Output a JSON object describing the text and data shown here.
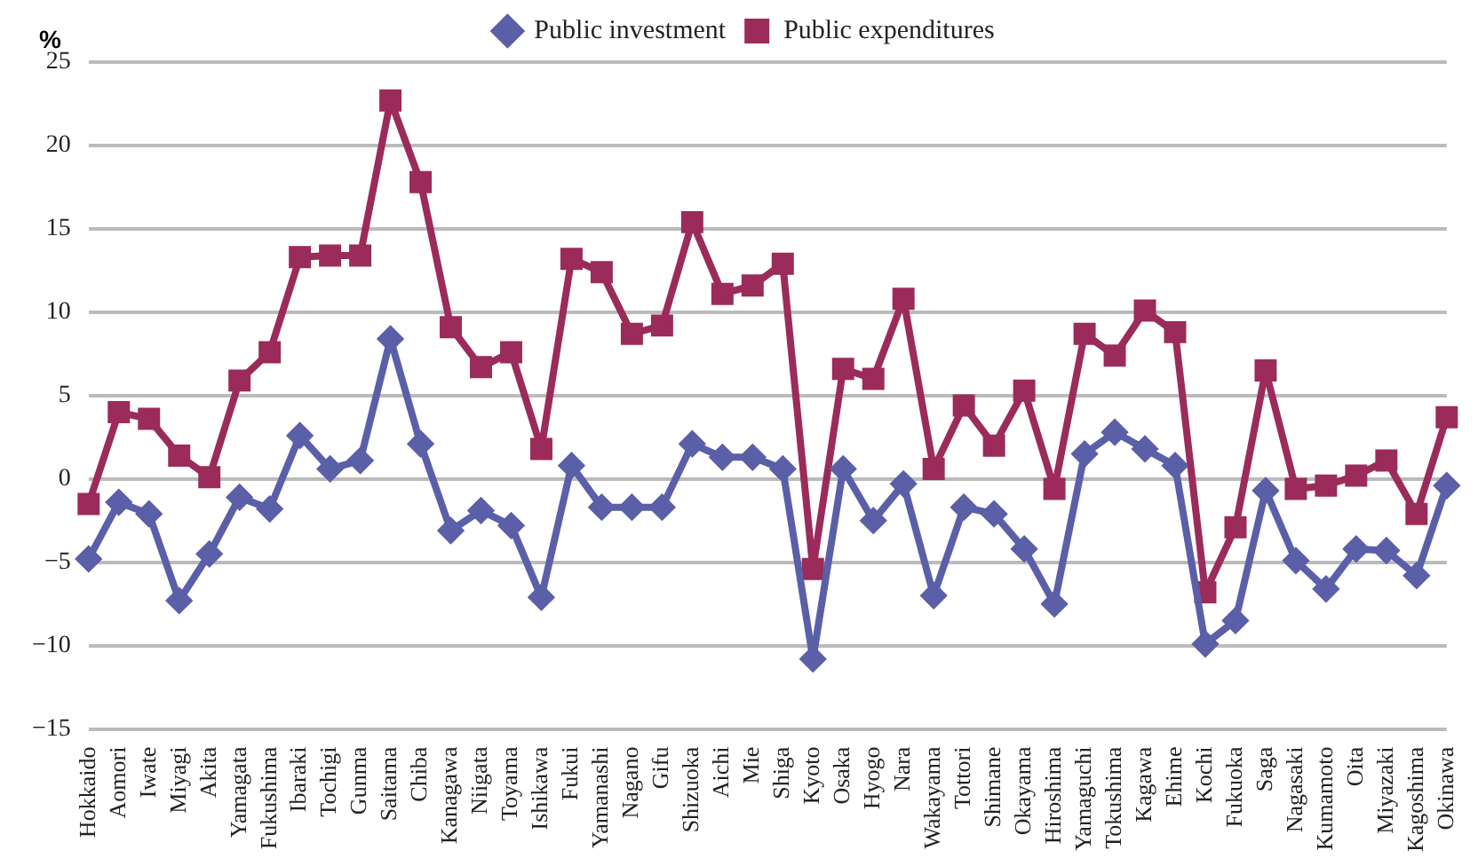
{
  "chart_data": {
    "type": "line",
    "ylabel": "%",
    "categories": [
      "Hokkaido",
      "Aomori",
      "Iwate",
      "Miyagi",
      "Akita",
      "Yamagata",
      "Fukushima",
      "Ibaraki",
      "Tochigi",
      "Gunma",
      "Saitama",
      "Chiba",
      "Kanagawa",
      "Niigata",
      "Toyama",
      "Ishikawa",
      "Fukui",
      "Yamanashi",
      "Nagano",
      "Gifu",
      "Shizuoka",
      "Aichi",
      "Mie",
      "Shiga",
      "Kyoto",
      "Osaka",
      "Hyogo",
      "Nara",
      "Wakayama",
      "Tottori",
      "Shimane",
      "Okayama",
      "Hiroshima",
      "Yamaguchi",
      "Tokushima",
      "Kagawa",
      "Ehime",
      "Kochi",
      "Fukuoka",
      "Saga",
      "Nagasaki",
      "Kumamoto",
      "Oita",
      "Miyazaki",
      "Kagoshima",
      "Okinawa"
    ],
    "series": [
      {
        "name": "Public investment",
        "color": "#5a5fa8",
        "marker": "diamond",
        "values": [
          -4.8,
          -1.4,
          -2.1,
          -7.3,
          -4.5,
          -1.1,
          -1.8,
          2.6,
          0.6,
          1.1,
          8.4,
          2.1,
          -3.1,
          -1.9,
          -2.8,
          -7.1,
          0.8,
          -1.7,
          -1.7,
          -1.7,
          2.1,
          1.3,
          1.3,
          0.6,
          -10.8,
          0.6,
          -2.5,
          -0.3,
          -7.0,
          -1.7,
          -2.1,
          -4.2,
          -7.5,
          1.5,
          2.8,
          1.8,
          0.8,
          -9.9,
          -8.5,
          -0.7,
          -4.9,
          -6.6,
          -4.2,
          -4.3,
          -5.8,
          -0.4
        ]
      },
      {
        "name": "Public expenditures",
        "color": "#9b2b5a",
        "marker": "square",
        "values": [
          -1.5,
          4.0,
          3.6,
          1.4,
          0.1,
          5.9,
          7.6,
          13.3,
          13.4,
          13.4,
          22.7,
          17.8,
          9.1,
          6.7,
          7.6,
          1.8,
          13.2,
          12.4,
          8.7,
          9.2,
          15.4,
          11.1,
          11.6,
          12.9,
          -5.4,
          6.6,
          6.0,
          10.8,
          0.6,
          4.4,
          2.0,
          5.3,
          -0.6,
          8.7,
          7.4,
          10.1,
          8.8,
          -6.8,
          -2.9,
          6.5,
          -0.6,
          -0.4,
          0.2,
          1.1,
          -2.1,
          3.7
        ]
      }
    ],
    "ylim": [
      -15,
      25
    ],
    "yticks": [
      25,
      20,
      15,
      10,
      5,
      0,
      {
        "value": -5,
        "label": "−5"
      },
      {
        "value": -10,
        "label": "−10"
      },
      {
        "value": -15,
        "label": "−15"
      }
    ],
    "grid": "y",
    "legend": "top",
    "line_style": "solid"
  }
}
